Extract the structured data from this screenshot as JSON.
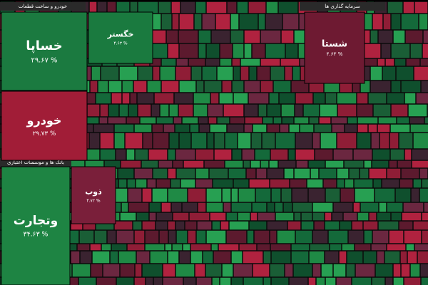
{
  "sections": [
    {
      "title": "خودرو و ساخت قطعات"
    },
    {
      "title": "بانک ها و موسسات اعتباری"
    },
    {
      "title": "سرمایه گذاری ها"
    }
  ],
  "tiles": [
    {
      "label": "خساپا",
      "change": "۲۹.۶۷ %"
    },
    {
      "label": "خودرو",
      "change": "۲۹.۷۳ %"
    },
    {
      "label": "وتجارت",
      "change": "۳۴.۶۳ %"
    },
    {
      "label": "خگستر",
      "change": "۴.۶۳ %"
    },
    {
      "label": "شستا",
      "change": "۴.۶۳ %"
    },
    {
      "label": "ذوب",
      "change": "۴.۷۲ %"
    }
  ]
}
